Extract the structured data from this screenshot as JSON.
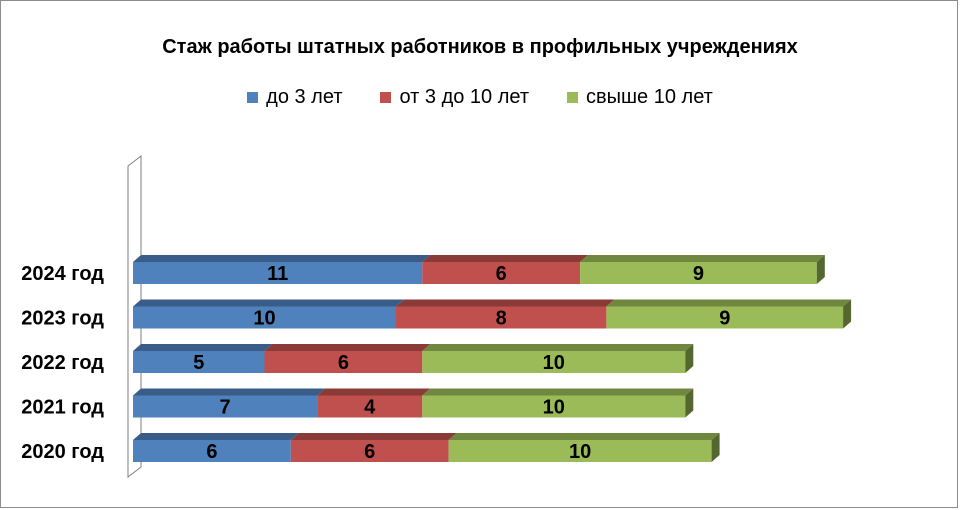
{
  "chart_data": {
    "type": "bar",
    "orientation": "horizontal",
    "stacked": true,
    "title": "Стаж работы  штатных работников  в профильных учреждениях",
    "categories": [
      "2024 год",
      "2023 год",
      "2022 год",
      "2021 год",
      "2020 год"
    ],
    "series": [
      {
        "name": "до  3 лет",
        "color": "#4f81bd",
        "values": [
          11,
          10,
          5,
          7,
          6
        ]
      },
      {
        "name": "от 3 до 10 лет",
        "color": "#c0504d",
        "values": [
          6,
          8,
          6,
          4,
          6
        ]
      },
      {
        "name": "свыше 10 лет",
        "color": "#9bbb59",
        "values": [
          9,
          9,
          10,
          10,
          10
        ]
      }
    ],
    "data_labels": true,
    "legend_position": "top",
    "grid": false
  }
}
